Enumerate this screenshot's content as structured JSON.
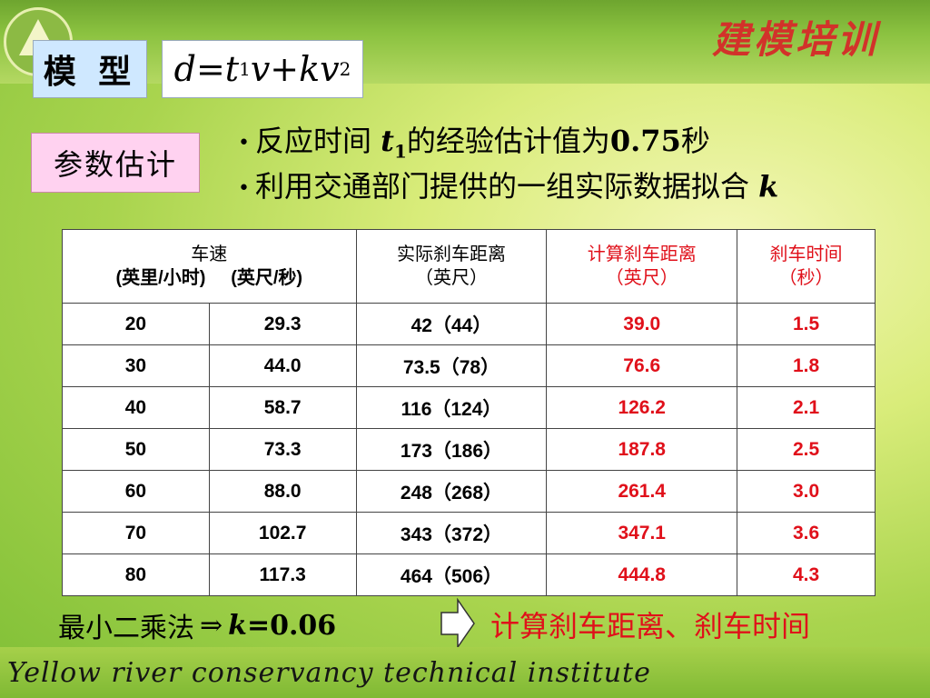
{
  "brand": "建模培训",
  "model": {
    "label": "模 型",
    "formula": {
      "lhs": "d",
      "eq": " = ",
      "t": "t",
      "t_sub": "1",
      "v": "v",
      "plus": " + ",
      "kv": "kv",
      "exp": "2"
    }
  },
  "param_label": "参数估计",
  "bullets": [
    {
      "dot": "•",
      "pre": "反应时间 ",
      "var": "t",
      "var_sub": "1",
      "mid": "的经验估计值为",
      "num": "0.75",
      "post": "秒"
    },
    {
      "dot": "•",
      "pre": "利用交通部门提供的一组实际数据拟合 ",
      "var": "k"
    }
  ],
  "table": {
    "headers": {
      "speed": "车速",
      "speed_mph": "(英里/小时)",
      "speed_fps": "(英尺/秒)",
      "actual": "实际刹车距离",
      "actual_unit": "（英尺）",
      "calc": "计算刹车距离",
      "calc_unit": "（英尺）",
      "time": "刹车时间",
      "time_unit": "（秒）"
    },
    "rows": [
      {
        "mph": "20",
        "fps": "29.3",
        "actual": "42（44）",
        "calc": "39.0",
        "time": "1.5"
      },
      {
        "mph": "30",
        "fps": "44.0",
        "actual": "73.5（78）",
        "calc": "76.6",
        "time": "1.8"
      },
      {
        "mph": "40",
        "fps": "58.7",
        "actual": "116（124）",
        "calc": "126.2",
        "time": "2.1"
      },
      {
        "mph": "50",
        "fps": "73.3",
        "actual": "173（186）",
        "calc": "187.8",
        "time": "2.5"
      },
      {
        "mph": "60",
        "fps": "88.0",
        "actual": "248（268）",
        "calc": "261.4",
        "time": "3.0"
      },
      {
        "mph": "70",
        "fps": "102.7",
        "actual": "343（372）",
        "calc": "347.1",
        "time": "3.6"
      },
      {
        "mph": "80",
        "fps": "117.3",
        "actual": "464（506）",
        "calc": "444.8",
        "time": "4.3"
      }
    ]
  },
  "footer": {
    "method": "最小二乘法",
    "arrow": "⇒",
    "k": "k",
    "k_value": "=0.06",
    "result": "计算刹车距离、刹车时间"
  },
  "bottom_script": "Yellow river conservancy technical institute",
  "colors": {
    "accent_red": "#e0101a",
    "model_bg": "#cfe8ff",
    "param_bg": "#ffd2f0"
  }
}
